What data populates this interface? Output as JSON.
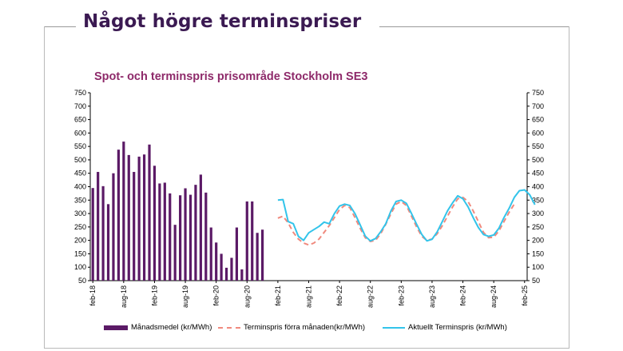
{
  "header": {
    "title": "Något högre terminspriser"
  },
  "chart_data": {
    "type": "bar+line",
    "title": "Spot- och terminspris prisområde Stockholm SE3",
    "ylim": [
      50,
      750
    ],
    "y_ticks": [
      50,
      100,
      150,
      200,
      250,
      300,
      350,
      400,
      450,
      500,
      550,
      600,
      650,
      700,
      750
    ],
    "x_tick_labels": [
      "feb-18",
      "aug-18",
      "feb-19",
      "aug-19",
      "feb-20",
      "aug-20",
      "feb-21",
      "aug-21",
      "feb-22",
      "aug-22",
      "feb-23",
      "aug-23",
      "feb-24",
      "aug-24",
      "feb-25"
    ],
    "legend_position": "bottom",
    "colors": {
      "bar": "#5b1a66",
      "prev": "#f08a7e",
      "curr": "#33c4ea"
    },
    "series": [
      {
        "name": "Månadsmedel (kr/MWh)",
        "kind": "bar",
        "start_month_index": 0,
        "values": [
          395,
          455,
          402,
          335,
          450,
          538,
          568,
          518,
          455,
          512,
          520,
          557,
          478,
          412,
          415,
          375,
          258,
          368,
          394,
          370,
          407,
          445,
          378,
          248,
          192,
          150,
          98,
          135,
          248,
          92,
          345,
          345,
          228,
          240
        ]
      },
      {
        "name": "Terminspris förra månaden(kr/MWh)",
        "kind": "line",
        "start_month_index": 36,
        "values": [
          283,
          290,
          265,
          230,
          205,
          190,
          183,
          190,
          205,
          230,
          255,
          285,
          315,
          330,
          322,
          285,
          245,
          210,
          196,
          200,
          225,
          260,
          300,
          335,
          345,
          330,
          290,
          250,
          215,
          200,
          205,
          225,
          255,
          290,
          325,
          355,
          360,
          345,
          310,
          270,
          230,
          210,
          212,
          235,
          270,
          305,
          335
        ]
      },
      {
        "name": "Aktuellt Terminspris (kr/MWh)",
        "kind": "line",
        "start_month_index": 36,
        "values": [
          350,
          352,
          270,
          262,
          215,
          200,
          228,
          240,
          252,
          268,
          262,
          300,
          328,
          335,
          330,
          300,
          258,
          216,
          198,
          207,
          232,
          262,
          310,
          345,
          350,
          338,
          300,
          260,
          222,
          198,
          204,
          232,
          270,
          310,
          340,
          366,
          355,
          325,
          285,
          248,
          222,
          215,
          220,
          245,
          285,
          320,
          360,
          385,
          388,
          370,
          333
        ]
      }
    ]
  }
}
